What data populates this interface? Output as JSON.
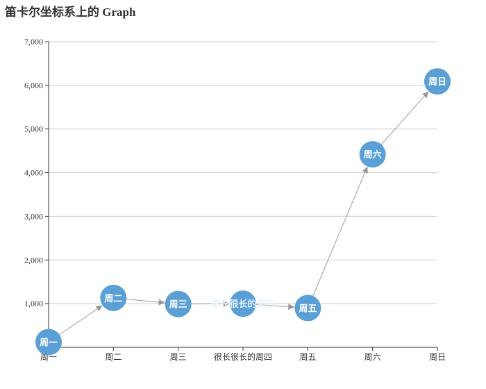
{
  "chart_data": {
    "type": "graph",
    "title": "笛卡尔坐标系上的 Graph",
    "categories": [
      "周一",
      "周二",
      "周三",
      "很长很长的周四",
      "周五",
      "周六",
      "周日"
    ],
    "values": [
      120,
      1132,
      991,
      1000,
      900,
      4420,
      6090
    ],
    "links": [
      {
        "source": 0,
        "target": 1
      },
      {
        "source": 1,
        "target": 2
      },
      {
        "source": 2,
        "target": 3
      },
      {
        "source": 3,
        "target": 4
      },
      {
        "source": 4,
        "target": 5
      },
      {
        "source": 5,
        "target": 6
      }
    ],
    "y_ticks": [
      "1,000",
      "2,000",
      "3,000",
      "4,000",
      "5,000",
      "6,000",
      "7,000"
    ],
    "ylim": [
      0,
      7000
    ],
    "grid": true,
    "node_color": "#5a9fd6",
    "node_label_color": "#ffffff",
    "long_label_color": "#e8f2fb",
    "edge_color": "#999999",
    "grid_color": "#cccccc",
    "axis_color": "#333333"
  }
}
